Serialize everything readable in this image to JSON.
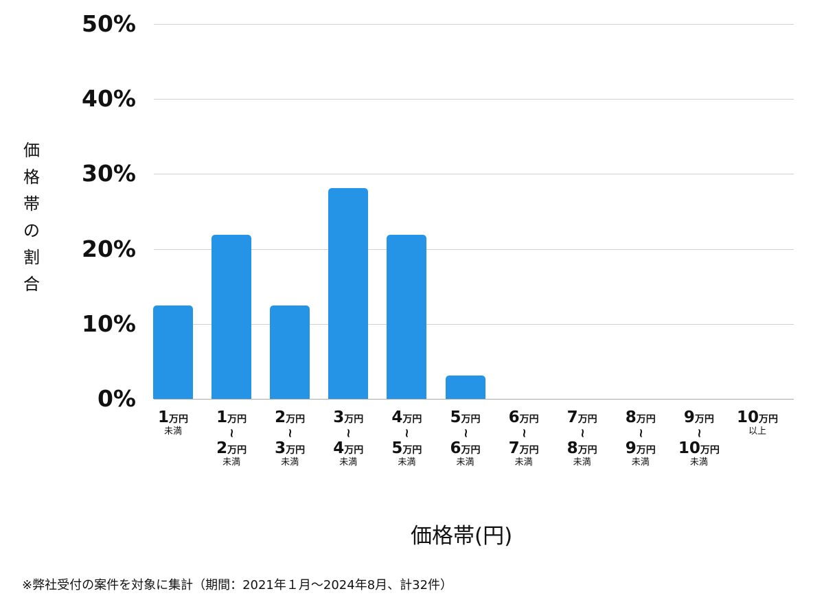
{
  "chart_data": {
    "type": "bar",
    "title": "",
    "xlabel": "価格帯(円)",
    "ylabel": "価格帯の割合",
    "ylim": [
      0,
      50
    ],
    "yticks": [
      "0%",
      "10%",
      "20%",
      "30%",
      "40%",
      "50%"
    ],
    "grid": true,
    "categories": [
      "1万円未満",
      "1万円〜2万円未満",
      "2万円〜3万円未満",
      "3万円〜4万円未満",
      "4万円〜5万円未満",
      "5万円〜6万円未満",
      "6万円〜7万円未満",
      "7万円〜8万円未満",
      "8万円〜9万円未満",
      "9万円〜10万円未満",
      "10万円以上"
    ],
    "values": [
      12.5,
      21.9,
      12.5,
      28.1,
      21.9,
      3.1,
      0,
      0,
      0,
      0,
      0
    ],
    "bar_color": "#2694e6"
  },
  "axis": {
    "y_ticks": [
      "50%",
      "40%",
      "30%",
      "20%",
      "10%",
      "0%"
    ],
    "ylabel_chars": [
      "価",
      "格",
      "帯",
      "の",
      "割",
      "合"
    ],
    "xlabel": "価格帯(円)"
  },
  "xcats": [
    {
      "a": "1",
      "b": "",
      "sub": "未満"
    },
    {
      "a": "1",
      "b": "2",
      "sub": "未満"
    },
    {
      "a": "2",
      "b": "3",
      "sub": "未満"
    },
    {
      "a": "3",
      "b": "4",
      "sub": "未満"
    },
    {
      "a": "4",
      "b": "5",
      "sub": "未満"
    },
    {
      "a": "5",
      "b": "6",
      "sub": "未満"
    },
    {
      "a": "6",
      "b": "7",
      "sub": "未満"
    },
    {
      "a": "7",
      "b": "8",
      "sub": "未満"
    },
    {
      "a": "8",
      "b": "9",
      "sub": "未満"
    },
    {
      "a": "9",
      "b": "10",
      "sub": "未満"
    },
    {
      "a": "10",
      "b": "",
      "sub": "以上"
    }
  ],
  "unit": "万円",
  "tilde": "~",
  "footnote": "※弊社受付の案件を対象に集計（期間：2021年１月〜2024年8月、計32件）"
}
